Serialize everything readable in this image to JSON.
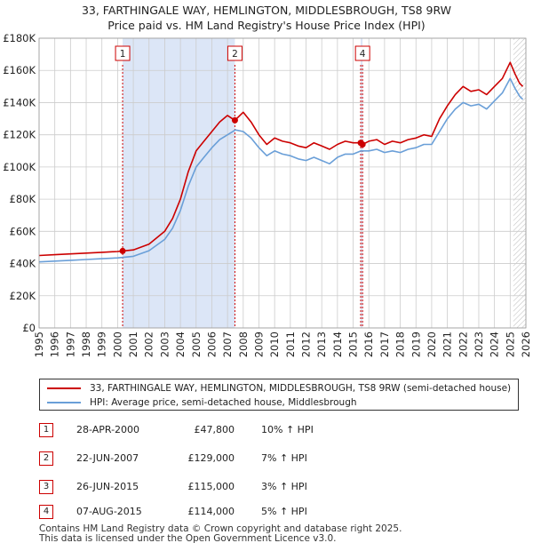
{
  "title": {
    "line1": "33, FARTHINGALE WAY, HEMLINGTON, MIDDLESBROUGH, TS8 9RW",
    "line2": "Price paid vs. HM Land Registry's House Price Index (HPI)"
  },
  "legend": {
    "property": "33, FARTHINGALE WAY, HEMLINGTON, MIDDLESBROUGH, TS8 9RW (semi-detached house)",
    "hpi": "HPI: Average price, semi-detached house, Middlesbrough"
  },
  "colors": {
    "property": "#cc0000",
    "hpi": "#6a9fd8",
    "shade": "#dce6f7",
    "grid": "#cccccc"
  },
  "transactions": [
    {
      "num": "1",
      "date": "28-APR-2000",
      "price": "£47,800",
      "hpi": "10% ↑ HPI"
    },
    {
      "num": "2",
      "date": "22-JUN-2007",
      "price": "£129,000",
      "hpi": "7% ↑ HPI"
    },
    {
      "num": "3",
      "date": "26-JUN-2015",
      "price": "£115,000",
      "hpi": "3% ↑ HPI"
    },
    {
      "num": "4",
      "date": "07-AUG-2015",
      "price": "£114,000",
      "hpi": "5% ↑ HPI"
    }
  ],
  "footer": {
    "line1": "Contains HM Land Registry data © Crown copyright and database right 2025.",
    "line2": "This data is licensed under the Open Government Licence v3.0."
  },
  "chart_data": {
    "type": "line",
    "title": "Price paid vs. HM Land Registry's House Price Index (HPI)",
    "xlim": [
      1995,
      2026
    ],
    "ylim": [
      0,
      180000
    ],
    "x_ticks": [
      1995,
      1996,
      1997,
      1998,
      1999,
      2000,
      2001,
      2002,
      2003,
      2004,
      2005,
      2006,
      2007,
      2008,
      2009,
      2010,
      2011,
      2012,
      2013,
      2014,
      2015,
      2016,
      2017,
      2018,
      2019,
      2020,
      2021,
      2022,
      2023,
      2024,
      2025,
      2026
    ],
    "y_ticks": [
      0,
      20000,
      40000,
      60000,
      80000,
      100000,
      120000,
      140000,
      160000,
      180000
    ],
    "y_tick_labels": [
      "£0",
      "£20K",
      "£40K",
      "£60K",
      "£80K",
      "£100K",
      "£120K",
      "£140K",
      "£160K",
      "£180K"
    ],
    "shaded_ranges": [
      [
        2000.32,
        2007.47
      ],
      [
        2015.48,
        2015.6
      ]
    ],
    "hatched_from": 2025.2,
    "sales": [
      {
        "label": "1",
        "x": 2000.32,
        "y": 47800
      },
      {
        "label": "2",
        "x": 2007.47,
        "y": 129000
      },
      {
        "label": "3",
        "x": 2015.48,
        "y": 115000
      },
      {
        "label": "4",
        "x": 2015.6,
        "y": 114000
      }
    ],
    "series": [
      {
        "name": "33, FARTHINGALE WAY, HEMLINGTON, MIDDLESBROUGH, TS8 9RW (semi-detached house)",
        "color": "#cc0000",
        "x": [
          1995,
          1996,
          1997,
          1998,
          1999,
          2000,
          2000.32,
          2001,
          2002,
          2003,
          2003.5,
          2004,
          2004.5,
          2005,
          2005.5,
          2006,
          2006.5,
          2007,
          2007.47,
          2008,
          2008.5,
          2009,
          2009.5,
          2010,
          2010.5,
          2011,
          2011.5,
          2012,
          2012.5,
          2013,
          2013.5,
          2014,
          2014.5,
          2015,
          2015.48,
          2015.6,
          2016,
          2016.5,
          2017,
          2017.5,
          2018,
          2018.5,
          2019,
          2019.5,
          2020,
          2020.5,
          2021,
          2021.5,
          2022,
          2022.5,
          2023,
          2023.5,
          2024,
          2024.5,
          2025,
          2025.3,
          2025.6,
          2025.8
        ],
        "values": [
          45000,
          45500,
          46000,
          46500,
          47000,
          47500,
          47800,
          48500,
          52000,
          60000,
          68000,
          80000,
          97000,
          110000,
          116000,
          122000,
          128000,
          132000,
          129000,
          134000,
          128000,
          120000,
          114000,
          118000,
          116000,
          115000,
          113000,
          112000,
          115000,
          113000,
          111000,
          114000,
          116000,
          115000,
          115000,
          114000,
          116000,
          117000,
          114000,
          116000,
          115000,
          117000,
          118000,
          120000,
          119000,
          130000,
          138000,
          145000,
          150000,
          147000,
          148000,
          145000,
          150000,
          155000,
          165000,
          158000,
          152000,
          150000
        ]
      },
      {
        "name": "HPI: Average price, semi-detached house, Middlesbrough",
        "color": "#6a9fd8",
        "x": [
          1995,
          1996,
          1997,
          1998,
          1999,
          2000,
          2001,
          2002,
          2003,
          2003.5,
          2004,
          2004.5,
          2005,
          2005.5,
          2006,
          2006.5,
          2007,
          2007.5,
          2008,
          2008.5,
          2009,
          2009.5,
          2010,
          2010.5,
          2011,
          2011.5,
          2012,
          2012.5,
          2013,
          2013.5,
          2014,
          2014.5,
          2015,
          2015.5,
          2016,
          2016.5,
          2017,
          2017.5,
          2018,
          2018.5,
          2019,
          2019.5,
          2020,
          2020.5,
          2021,
          2021.5,
          2022,
          2022.5,
          2023,
          2023.5,
          2024,
          2024.5,
          2025,
          2025.3,
          2025.6,
          2025.8
        ],
        "values": [
          41000,
          41500,
          42000,
          42500,
          43000,
          43500,
          44500,
          48000,
          55000,
          62000,
          73000,
          88000,
          100000,
          106000,
          112000,
          117000,
          120000,
          123000,
          122000,
          118000,
          112000,
          107000,
          110000,
          108000,
          107000,
          105000,
          104000,
          106000,
          104000,
          102000,
          106000,
          108000,
          108000,
          110000,
          110000,
          111000,
          109000,
          110000,
          109000,
          111000,
          112000,
          114000,
          114000,
          122000,
          130000,
          136000,
          140000,
          138000,
          139000,
          136000,
          141000,
          146000,
          155000,
          149000,
          144000,
          142000
        ]
      }
    ]
  }
}
